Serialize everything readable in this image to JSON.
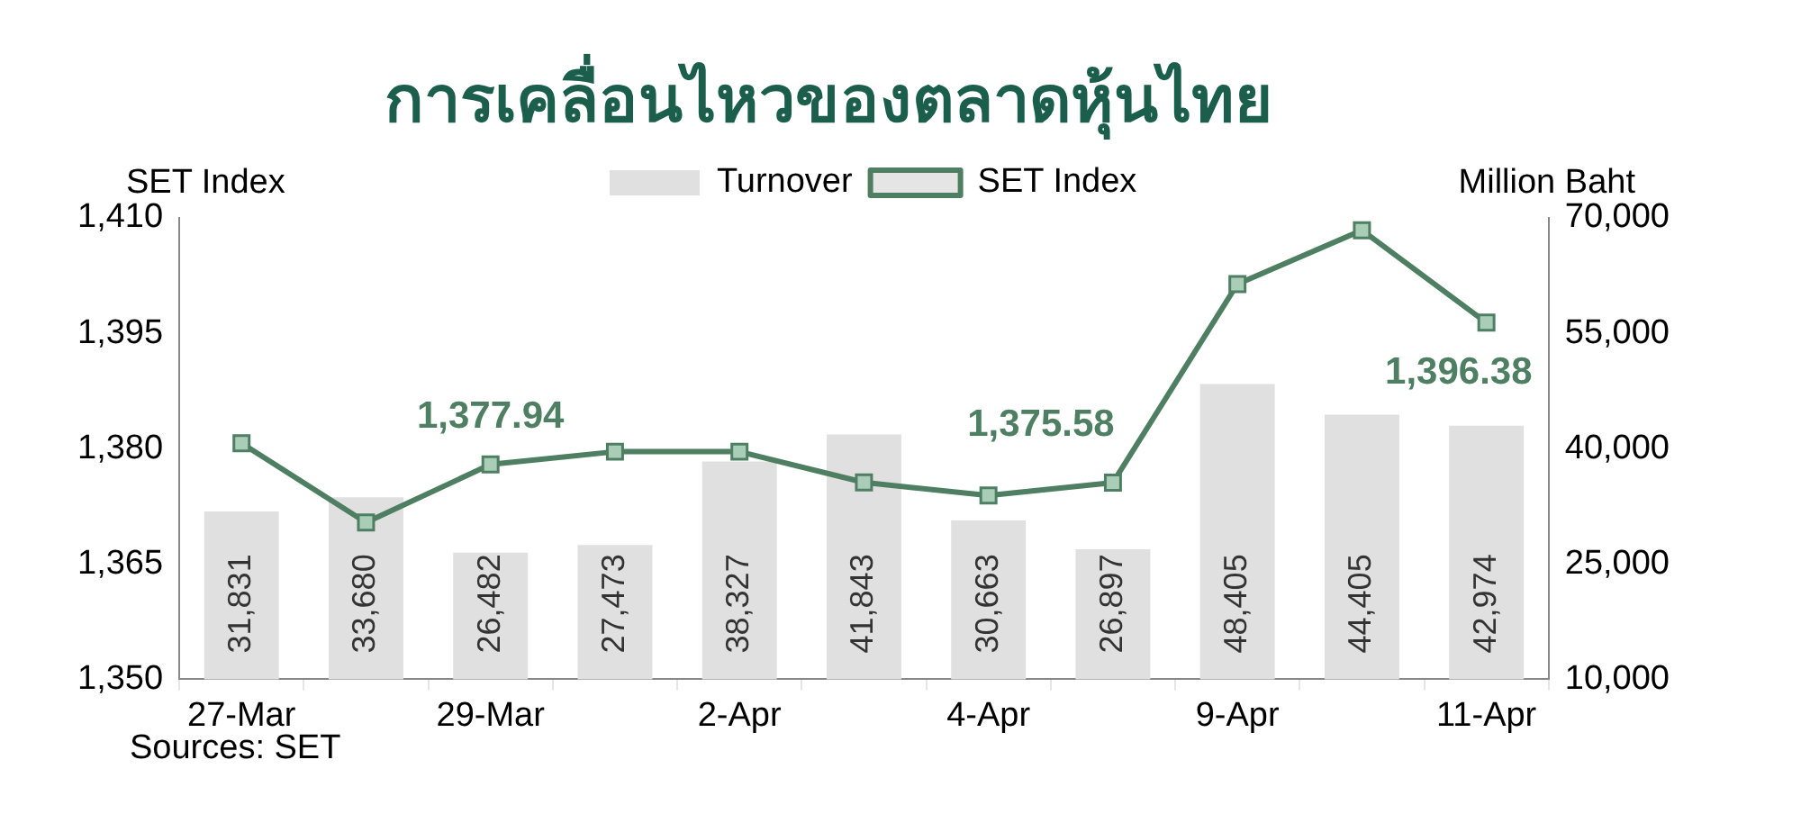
{
  "chart_data": {
    "type": "bar",
    "title": "การเคลื่อนไหวของตลาดหุ้นไทย",
    "categories": [
      "27-Mar",
      null,
      "29-Mar",
      null,
      "2-Apr",
      null,
      "4-Apr",
      null,
      "9-Apr",
      null,
      "11-Apr"
    ],
    "series": [
      {
        "name": "Turnover",
        "axis": "y2",
        "color": "#e0e0e0",
        "values": [
          31831,
          33680,
          26482,
          27473,
          38327,
          41843,
          30663,
          26897,
          48405,
          44405,
          42974
        ],
        "value_labels": [
          "31,831",
          "33,680",
          "26,482",
          "27,473",
          "38,327",
          "41,843",
          "30,663",
          "26,897",
          "48,405",
          "44,405",
          "42,974"
        ]
      },
      {
        "name": "SET Index",
        "type": "line",
        "axis": "y",
        "color": "#4f7f62",
        "marker": "square",
        "values": [
          1380.7,
          1370.4,
          1377.94,
          1379.6,
          1379.6,
          1375.6,
          1373.9,
          1375.58,
          1401.4,
          1408.4,
          1396.38
        ],
        "value_labels": [
          null,
          null,
          "1,377.94",
          null,
          null,
          null,
          null,
          "1,375.58",
          null,
          null,
          "1,396.38"
        ]
      }
    ],
    "ylabel": "SET Index",
    "y2label": "Million Baht",
    "ylim": [
      1350,
      1410
    ],
    "yticks": [
      {
        "value": 1350,
        "label": "1,350"
      },
      {
        "value": 1365,
        "label": "1,365"
      },
      {
        "value": 1380,
        "label": "1,380"
      },
      {
        "value": 1395,
        "label": "1,395"
      },
      {
        "value": 1410,
        "label": "1,410"
      }
    ],
    "y2lim": [
      10000,
      70000
    ],
    "y2ticks": [
      {
        "value": 10000,
        "label": "10,000"
      },
      {
        "value": 25000,
        "label": "25,000"
      },
      {
        "value": 40000,
        "label": "40,000"
      },
      {
        "value": 55000,
        "label": "55,000"
      },
      {
        "value": 70000,
        "label": "70,000"
      }
    ],
    "legend": "top",
    "annotations": [
      "Sources: SET"
    ]
  }
}
